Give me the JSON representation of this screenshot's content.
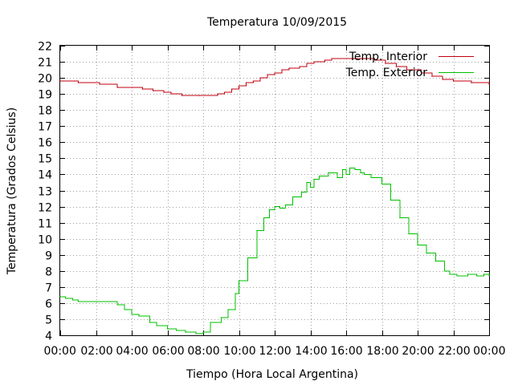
{
  "chart_data": {
    "type": "line",
    "title": "Temperatura 10/09/2015",
    "xlabel": "Tiempo (Hora Local Argentina)",
    "ylabel": "Temperatura (Grados Celsius)",
    "xlim": [
      0,
      24
    ],
    "ylim": [
      4,
      22
    ],
    "x_tick_values": [
      0,
      2,
      4,
      6,
      8,
      10,
      12,
      14,
      16,
      18,
      20,
      22,
      24
    ],
    "x_tick_labels": [
      "00:00",
      "02:00",
      "04:00",
      "06:00",
      "08:00",
      "10:00",
      "12:00",
      "14:00",
      "16:00",
      "18:00",
      "20:00",
      "22:00",
      "00:00"
    ],
    "y_ticks": [
      4,
      5,
      6,
      7,
      8,
      9,
      10,
      11,
      12,
      13,
      14,
      15,
      16,
      17,
      18,
      19,
      20,
      21,
      22
    ],
    "grid": true,
    "legend_position": "top-right",
    "series": [
      {
        "name": "Temp. Interior",
        "color": "#c0000f",
        "x": [
          0,
          0.8,
          1.0,
          2.2,
          3.2,
          4.6,
          5.2,
          5.8,
          6.2,
          6.8,
          7.8,
          8.8,
          9.2,
          9.6,
          10.0,
          10.4,
          10.8,
          11.2,
          11.6,
          12.0,
          12.4,
          12.8,
          13.4,
          13.8,
          14.2,
          14.8,
          15.2,
          17.0,
          17.6,
          18.2,
          18.8,
          19.4,
          20.2,
          20.8,
          21.4,
          22.0,
          23.0,
          24.0
        ],
        "y": [
          19.8,
          19.8,
          19.7,
          19.6,
          19.4,
          19.3,
          19.2,
          19.1,
          19.0,
          18.9,
          18.9,
          19.0,
          19.1,
          19.3,
          19.5,
          19.7,
          19.8,
          20.0,
          20.2,
          20.3,
          20.5,
          20.6,
          20.7,
          20.9,
          21.0,
          21.1,
          21.2,
          21.2,
          21.1,
          20.9,
          20.7,
          20.5,
          20.3,
          20.1,
          19.9,
          19.8,
          19.7,
          19.6
        ]
      },
      {
        "name": "Temp. Exterior",
        "color": "#00c000",
        "x": [
          0,
          0.3,
          0.7,
          1.0,
          2.0,
          2.8,
          3.2,
          3.6,
          4.0,
          4.4,
          5.0,
          5.4,
          6.0,
          6.5,
          7.0,
          7.6,
          8.0,
          8.4,
          9.0,
          9.4,
          9.8,
          10.0,
          10.5,
          11.0,
          11.4,
          11.7,
          12.0,
          12.3,
          12.6,
          13.0,
          13.5,
          13.8,
          14.0,
          14.2,
          14.5,
          15.0,
          15.5,
          15.8,
          16.0,
          16.2,
          16.5,
          16.8,
          17.0,
          17.4,
          18.0,
          18.5,
          19.0,
          19.5,
          20.0,
          20.5,
          21.0,
          21.5,
          21.8,
          22.2,
          22.8,
          23.3,
          23.7,
          24.0
        ],
        "y": [
          6.4,
          6.3,
          6.2,
          6.1,
          6.1,
          6.1,
          5.9,
          5.6,
          5.3,
          5.2,
          4.8,
          4.6,
          4.4,
          4.3,
          4.2,
          4.1,
          4.2,
          4.8,
          5.1,
          5.6,
          6.6,
          7.4,
          8.8,
          10.5,
          11.3,
          11.8,
          12.0,
          11.9,
          12.1,
          12.6,
          12.9,
          13.5,
          13.2,
          13.7,
          13.9,
          14.1,
          13.8,
          14.3,
          14.0,
          14.4,
          14.3,
          14.1,
          14.0,
          13.8,
          13.4,
          12.4,
          11.3,
          10.3,
          9.6,
          9.1,
          8.6,
          8.0,
          7.8,
          7.7,
          7.8,
          7.7,
          7.8,
          7.7
        ]
      }
    ]
  }
}
